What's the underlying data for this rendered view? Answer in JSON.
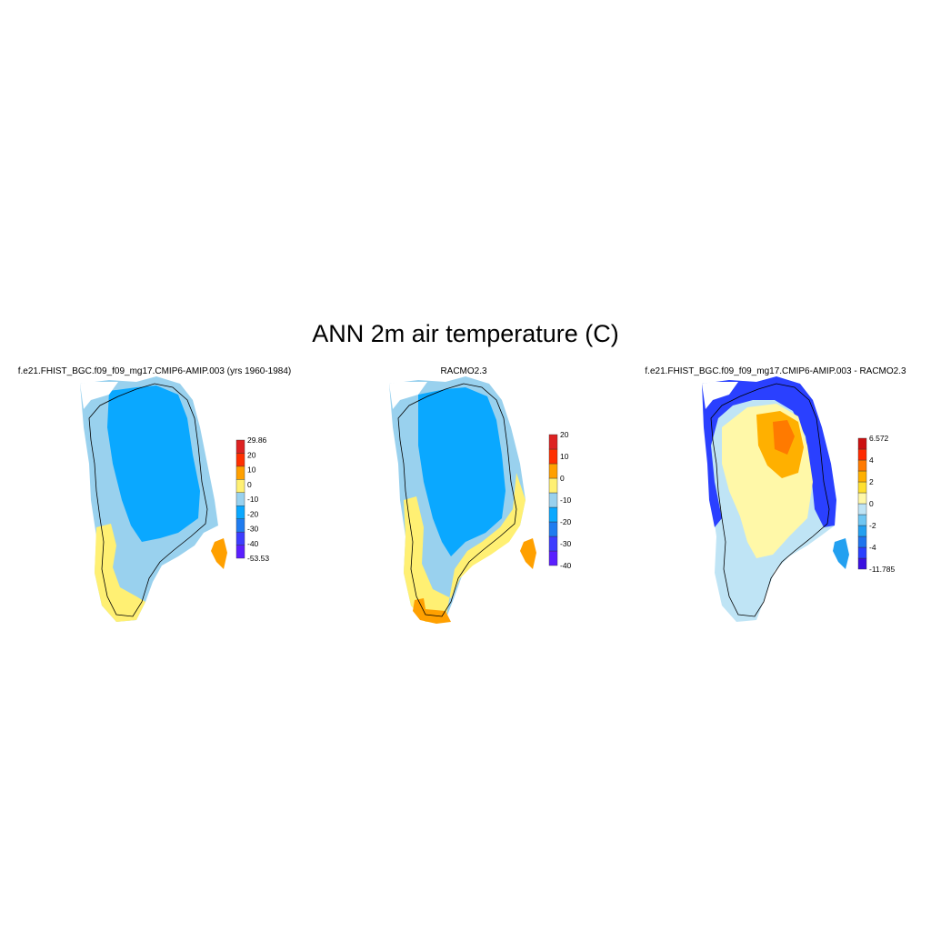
{
  "figure": {
    "title": "ANN 2m air temperature (C)"
  },
  "panels": [
    {
      "id": "model",
      "title": "f.e21.FHIST_BGC.f09_f09_mg17.CMIP6-AMIP.003 (yrs 1960-1984)",
      "colorbar": {
        "colors": [
          "#5a1fff",
          "#3d3dff",
          "#1f7cf0",
          "#0aa8ff",
          "#99d1ee",
          "#fff073",
          "#ffa000",
          "#ff3000",
          "#dd2222"
        ],
        "labels": [
          "-53.53",
          "-40",
          "-30",
          "-20",
          "-10",
          "0",
          "10",
          "20",
          "29.86"
        ]
      }
    },
    {
      "id": "obs",
      "title": "RACMO2.3",
      "colorbar": {
        "colors": [
          "#5a1fff",
          "#3d3dff",
          "#1f7cf0",
          "#0aa8ff",
          "#99d1ee",
          "#fff073",
          "#ffa000",
          "#ff3000",
          "#dd2222"
        ],
        "labels": [
          "-40",
          "-30",
          "-20",
          "-10",
          "0",
          "10",
          "20"
        ]
      }
    },
    {
      "id": "diff",
      "title": "f.e21.FHIST_BGC.f09_f09_mg17.CMIP6-AMIP.003 - RACMO2.3",
      "colorbar": {
        "colors": [
          "#3a10e0",
          "#2a40ff",
          "#1e74ee",
          "#23a0f0",
          "#6fc6f2",
          "#bfe4f5",
          "#fff8a8",
          "#ffe030",
          "#ffb000",
          "#ff7a00",
          "#ff2a00",
          "#cc1010"
        ],
        "labels": [
          "-11.785",
          "-4",
          "-2",
          "0",
          "2",
          "4",
          "6.572"
        ]
      }
    }
  ]
}
